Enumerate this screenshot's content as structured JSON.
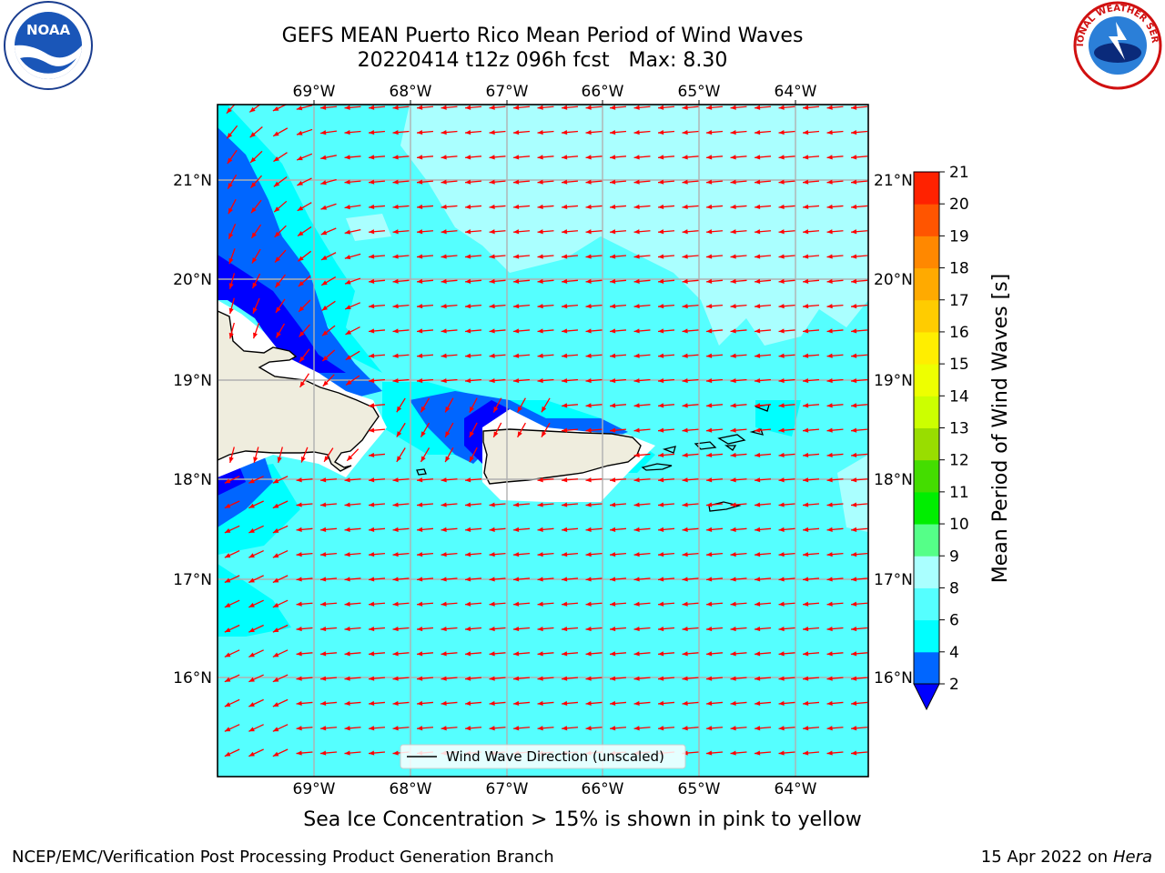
{
  "header": {
    "title_line1": "GEFS MEAN Puerto Rico Mean Period of Wind Waves",
    "title_line2": "20220414 t12z 096h fcst   Max: 8.30"
  },
  "logos": {
    "left": {
      "icon": "noaa-logo",
      "text": "NOAA"
    },
    "right": {
      "icon": "national-weather-service-logo",
      "text": "NATIONAL WEATHER SERVICE"
    }
  },
  "map": {
    "projection": "lat-lon",
    "lon_range": [
      -70.0,
      -63.25
    ],
    "lat_range": [
      15.0,
      21.75
    ],
    "ocean_fill": "#55ffff",
    "land_fill": "#efedde",
    "grid_color": "#b0b0b0",
    "arrow_color": "#ff0000",
    "lon_ticks": [
      "69°W",
      "68°W",
      "67°W",
      "66°W",
      "65°W",
      "64°W"
    ],
    "lat_ticks": [
      "16°N",
      "17°N",
      "18°N",
      "19°N",
      "20°N",
      "21°N"
    ],
    "legend_label": "Wind Wave Direction (unscaled)"
  },
  "colorbar": {
    "title": "Mean Period of Wind Waves [s]",
    "tick_labels": [
      "2",
      "4",
      "6",
      "8",
      "9",
      "10",
      "11",
      "12",
      "13",
      "14",
      "15",
      "16",
      "17",
      "18",
      "19",
      "20",
      "21"
    ],
    "colors": [
      "#0066ff",
      "#00ffff",
      "#55ffff",
      "#aaffff",
      "#55ff88",
      "#00ee00",
      "#44dd00",
      "#99dd00",
      "#ccff00",
      "#eeff00",
      "#ffee00",
      "#ffcc00",
      "#ffaa00",
      "#ff8800",
      "#ff5500",
      "#ff2200",
      "#ff0000"
    ],
    "under_color": "#0000ff"
  },
  "notes": {
    "sea_ice": "Sea Ice Concentration > 15% is shown in pink to yellow"
  },
  "footer": {
    "left": "NCEP/EMC/Verification Post Processing Product Generation Branch",
    "date": "15 Apr 2022 on ",
    "host": "Hera"
  }
}
